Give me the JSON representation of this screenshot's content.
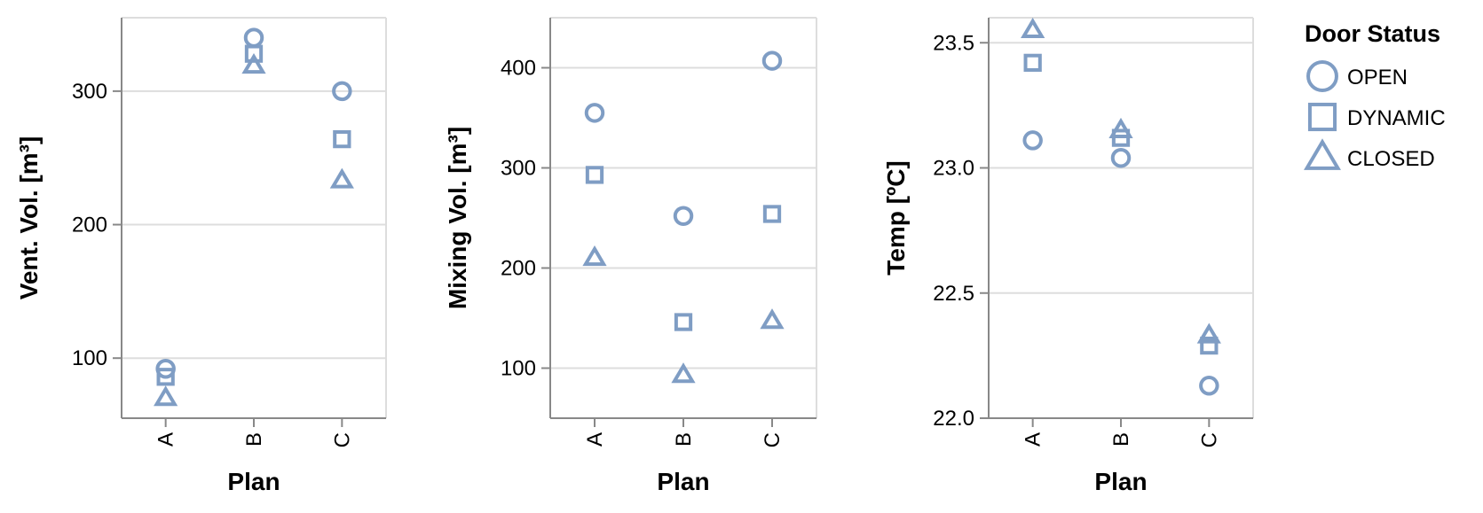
{
  "chart_data": [
    {
      "type": "scatter",
      "xlabel": "Plan",
      "ylabel": "Vent. Vol. [m³]",
      "categories": [
        "A",
        "B",
        "C"
      ],
      "ylim": [
        55,
        355
      ],
      "yticks": [
        100,
        200,
        300
      ],
      "ytick_labels": [
        "100",
        "200",
        "300"
      ],
      "grid": true,
      "series": [
        {
          "name": "OPEN",
          "values": [
            92,
            340,
            300
          ]
        },
        {
          "name": "DYNAMIC",
          "values": [
            86,
            328,
            264
          ]
        },
        {
          "name": "CLOSED",
          "values": [
            70,
            319,
            233
          ]
        }
      ]
    },
    {
      "type": "scatter",
      "xlabel": "Plan",
      "ylabel": "Mixing Vol. [m³]",
      "categories": [
        "A",
        "B",
        "C"
      ],
      "ylim": [
        50,
        450
      ],
      "yticks": [
        100,
        200,
        300,
        400
      ],
      "ytick_labels": [
        "100",
        "200",
        "300",
        "400"
      ],
      "grid": true,
      "series": [
        {
          "name": "OPEN",
          "values": [
            355,
            252,
            407
          ]
        },
        {
          "name": "DYNAMIC",
          "values": [
            293,
            146,
            254
          ]
        },
        {
          "name": "CLOSED",
          "values": [
            210,
            93,
            147
          ]
        }
      ]
    },
    {
      "type": "scatter",
      "xlabel": "Plan",
      "ylabel": "Temp [ºC]",
      "categories": [
        "A",
        "B",
        "C"
      ],
      "ylim": [
        22.0,
        23.6
      ],
      "yticks": [
        22.0,
        22.5,
        23.0,
        23.5
      ],
      "ytick_labels": [
        "22.0",
        "22.5",
        "23.0",
        "23.5"
      ],
      "grid": true,
      "series": [
        {
          "name": "OPEN",
          "values": [
            23.11,
            23.04,
            22.13
          ]
        },
        {
          "name": "DYNAMIC",
          "values": [
            23.42,
            23.12,
            22.29
          ]
        },
        {
          "name": "CLOSED",
          "values": [
            23.55,
            23.15,
            22.33
          ]
        }
      ]
    }
  ],
  "legend": {
    "title": "Door Status",
    "placement": "top-right",
    "items": [
      {
        "label": "OPEN",
        "shape": "circle"
      },
      {
        "label": "DYNAMIC",
        "shape": "square"
      },
      {
        "label": "CLOSED",
        "shape": "triangle"
      }
    ]
  },
  "colors": {
    "marker": "#7f9dc4",
    "grid": "#dddddd",
    "axis": "#888888"
  }
}
